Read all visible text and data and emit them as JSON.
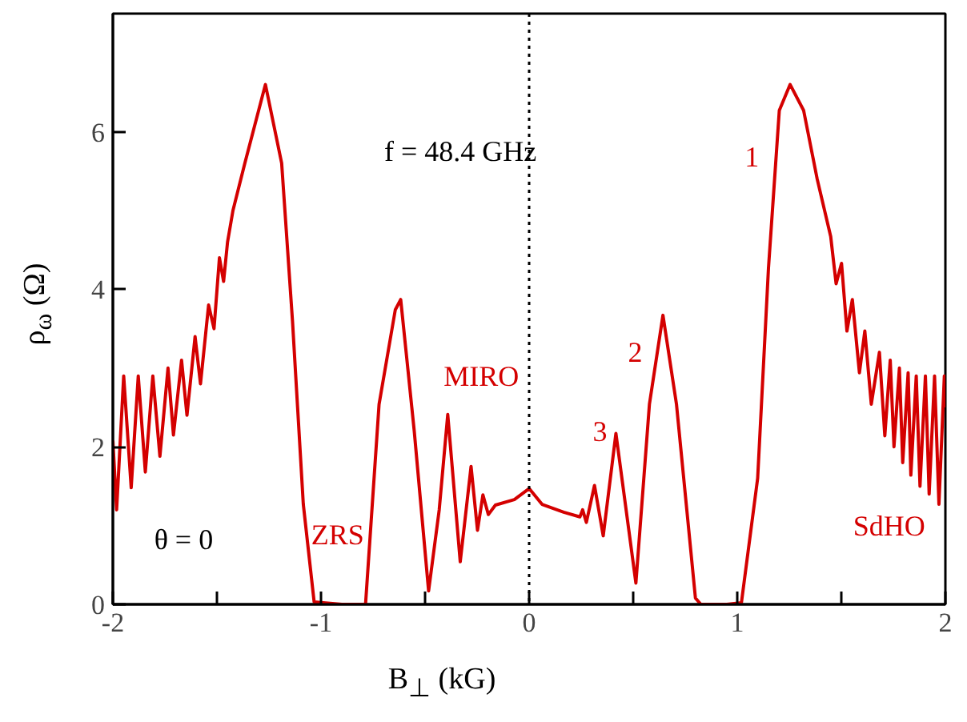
{
  "chart_data": {
    "type": "line",
    "xlabel": "B$_{⊥}$ (kG)",
    "ylabel": "ρ$_{ω}$ (Ω)",
    "xlim": [
      -2,
      2
    ],
    "ylim": [
      0,
      7.5
    ],
    "xticks": [
      -2,
      {
        "value": -1.5,
        "label": null
      },
      -1,
      {
        "value": -0.5,
        "label": null
      },
      0,
      {
        "value": 0.5,
        "label": null
      },
      1,
      {
        "value": 1.5,
        "label": null
      },
      2
    ],
    "yticks": [
      0,
      2,
      4,
      6
    ],
    "grid": false,
    "marker": "none",
    "line_style": "solid",
    "ref_lines": [
      {
        "axis": "x",
        "value": 0,
        "color": "#000000",
        "line_style": "dotted"
      }
    ],
    "annotations": [
      "f = 48.4 GHz",
      "θ = 0",
      "1",
      "2",
      "3",
      "MIRO",
      "ZRS",
      "SdHO"
    ],
    "series": [
      {
        "color": "#d40000",
        "x": [
          -2.0,
          -1.982,
          -1.948,
          -1.912,
          -1.878,
          -1.844,
          -1.808,
          -1.774,
          -1.735,
          -1.709,
          -1.67,
          -1.644,
          -1.605,
          -1.579,
          -1.54,
          -1.514,
          -1.488,
          -1.468,
          -1.449,
          -1.423,
          -1.366,
          -1.267,
          -1.189,
          -1.137,
          -1.085,
          -1.033,
          -0.9,
          -0.786,
          -0.721,
          -0.643,
          -0.617,
          -0.552,
          -0.483,
          -0.432,
          -0.391,
          -0.331,
          -0.279,
          -0.248,
          -0.222,
          -0.196,
          -0.162,
          -0.071,
          0.0,
          0.062,
          0.166,
          0.244,
          0.257,
          0.275,
          0.314,
          0.356,
          0.417,
          0.513,
          0.578,
          0.643,
          0.708,
          0.799,
          0.825,
          0.95,
          1.02,
          1.098,
          1.15,
          1.202,
          1.254,
          1.319,
          1.384,
          1.449,
          1.475,
          1.501,
          1.527,
          1.553,
          1.587,
          1.613,
          1.644,
          1.683,
          1.709,
          1.735,
          1.753,
          1.779,
          1.795,
          1.821,
          1.834,
          1.86,
          1.878,
          1.904,
          1.922,
          1.948,
          1.969,
          1.995,
          2.0
        ],
        "values": [
          2.08,
          1.2,
          2.9,
          1.48,
          2.9,
          1.68,
          2.9,
          1.88,
          3.0,
          2.15,
          3.1,
          2.4,
          3.4,
          2.8,
          3.8,
          3.5,
          4.4,
          4.1,
          4.6,
          5.0,
          5.6,
          6.6,
          5.6,
          3.6,
          1.27,
          0.03,
          0.0,
          0.0,
          2.54,
          3.74,
          3.87,
          2.2,
          0.17,
          1.2,
          2.41,
          0.54,
          1.75,
          0.94,
          1.39,
          1.14,
          1.26,
          1.33,
          1.47,
          1.27,
          1.17,
          1.11,
          1.2,
          1.04,
          1.51,
          0.87,
          2.17,
          0.27,
          2.54,
          3.67,
          2.54,
          0.08,
          0.0,
          0.0,
          0.02,
          1.6,
          4.27,
          6.27,
          6.6,
          6.27,
          5.4,
          4.67,
          4.07,
          4.33,
          3.47,
          3.87,
          2.94,
          3.47,
          2.54,
          3.2,
          2.14,
          3.1,
          2.0,
          3.0,
          1.8,
          2.94,
          1.64,
          2.9,
          1.5,
          2.9,
          1.4,
          2.9,
          1.27,
          2.9,
          2.5
        ]
      }
    ]
  }
}
